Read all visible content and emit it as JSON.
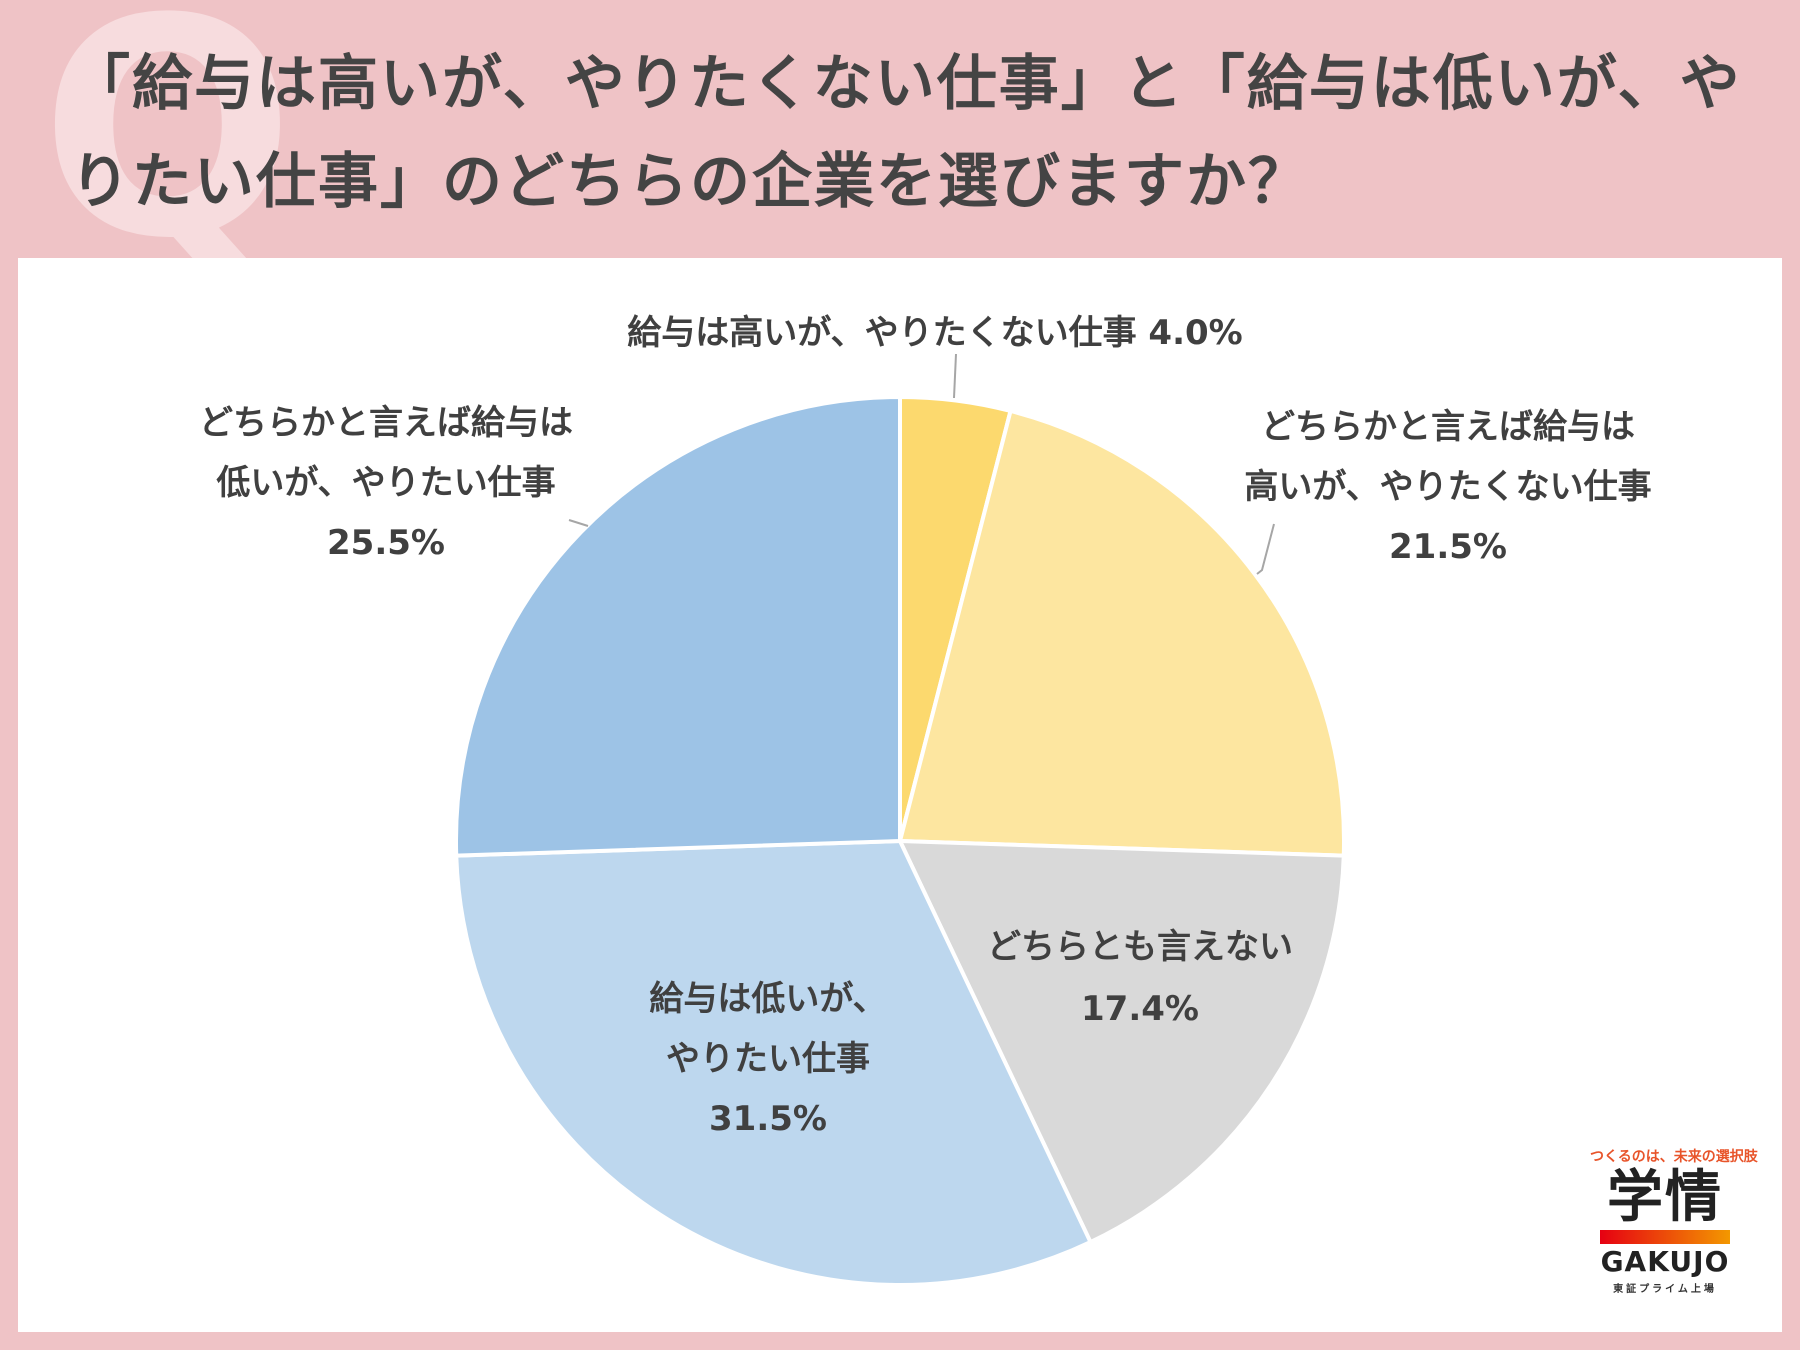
{
  "header": {
    "title": "「給与は高いが、やりたくない仕事」と「給与は低いが、やりたい仕事」のどちらの企業を選びますか？"
  },
  "chart_data": {
    "type": "pie",
    "title": "",
    "start_angle_deg": 0,
    "direction": "clockwise",
    "slices": [
      {
        "label": "給与は高いが、やりたくない仕事",
        "value": 4.0,
        "value_label": "4.0%",
        "color": "#fcd96e"
      },
      {
        "label": "どちらかと言えば給与は高いが、やりたくない仕事",
        "value": 21.5,
        "value_label": "21.5%",
        "color": "#fde6a0"
      },
      {
        "label": "どちらとも言えない",
        "value": 17.4,
        "value_label": "17.4%",
        "color": "#d9d9d9"
      },
      {
        "label": "給与は低いが、やりたい仕事",
        "value": 31.5,
        "value_label": "31.5%",
        "color": "#bdd7ee"
      },
      {
        "label": "どちらかと言えば給与は低いが、やりたい仕事",
        "value": 25.5,
        "value_label": "25.5%",
        "color": "#9dc3e6"
      }
    ]
  },
  "labels": {
    "s0_line1": "給与は高いが、やりたくない仕事 4.0%",
    "s1_line1": "どちらかと言えば給与は",
    "s1_line2": "高いが、やりたくない仕事",
    "s1_line3": "21.5%",
    "s2_line1": "どちらとも言えない",
    "s2_line2": "17.4%",
    "s3_line1": "給与は低いが、",
    "s3_line2": "やりたい仕事",
    "s3_line3": "31.5%",
    "s4_line1": "どちらかと言えば給与は",
    "s4_line2": "低いが、やりたい仕事",
    "s4_line3": "25.5%"
  },
  "logo": {
    "tagline": "つくるのは、未来の選択肢",
    "kanji": "学情",
    "name": "GAKUJO",
    "sub": "東証プライム上場"
  }
}
